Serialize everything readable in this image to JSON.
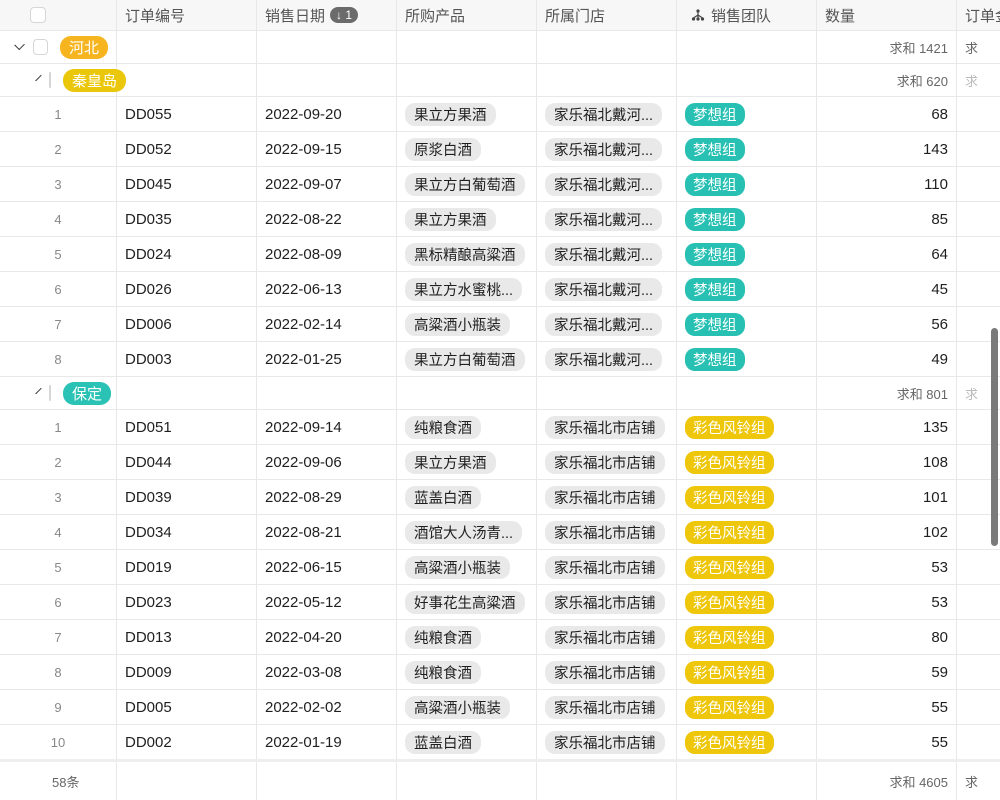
{
  "header": {
    "columns": [
      "订单编号",
      "销售日期",
      "所购产品",
      "所属门店",
      "销售团队",
      "数量",
      "订单金"
    ],
    "sort_badge": "↓ 1",
    "team_icon": "hierarchy-icon"
  },
  "colors": {
    "hebei": "#f6b51e",
    "qinhuangdao": "#ebc70c",
    "baoding": "#29c2b4",
    "team_dream": "#27c0b3",
    "team_wind": "#eec60a"
  },
  "groups": [
    {
      "label": "河北",
      "sum": "求和 1421",
      "sum2": "求",
      "color": "#f6b51e",
      "level": 0
    },
    {
      "label": "秦皇岛",
      "sum": "求和 620",
      "sum2": "求",
      "color": "#ebc70c",
      "level": 1,
      "rows": [
        {
          "i": "1",
          "id": "DD055",
          "date": "2022-09-20",
          "product": "果立方果酒",
          "store": "家乐福北戴河...",
          "team": "梦想组",
          "qty": "68"
        },
        {
          "i": "2",
          "id": "DD052",
          "date": "2022-09-15",
          "product": "原浆白酒",
          "store": "家乐福北戴河...",
          "team": "梦想组",
          "qty": "143"
        },
        {
          "i": "3",
          "id": "DD045",
          "date": "2022-09-07",
          "product": "果立方白葡萄酒",
          "store": "家乐福北戴河...",
          "team": "梦想组",
          "qty": "110"
        },
        {
          "i": "4",
          "id": "DD035",
          "date": "2022-08-22",
          "product": "果立方果酒",
          "store": "家乐福北戴河...",
          "team": "梦想组",
          "qty": "85"
        },
        {
          "i": "5",
          "id": "DD024",
          "date": "2022-08-09",
          "product": "黑标精酿高粱酒",
          "store": "家乐福北戴河...",
          "team": "梦想组",
          "qty": "64"
        },
        {
          "i": "6",
          "id": "DD026",
          "date": "2022-06-13",
          "product": "果立方水蜜桃...",
          "store": "家乐福北戴河...",
          "team": "梦想组",
          "qty": "45"
        },
        {
          "i": "7",
          "id": "DD006",
          "date": "2022-02-14",
          "product": "高粱酒小瓶装",
          "store": "家乐福北戴河...",
          "team": "梦想组",
          "qty": "56"
        },
        {
          "i": "8",
          "id": "DD003",
          "date": "2022-01-25",
          "product": "果立方白葡萄酒",
          "store": "家乐福北戴河...",
          "team": "梦想组",
          "qty": "49"
        }
      ]
    },
    {
      "label": "保定",
      "sum": "求和 801",
      "sum2": "求",
      "color": "#29c2b4",
      "level": 1,
      "rows": [
        {
          "i": "1",
          "id": "DD051",
          "date": "2022-09-14",
          "product": "纯粮食酒",
          "store": "家乐福北市店铺",
          "team": "彩色风铃组",
          "qty": "135"
        },
        {
          "i": "2",
          "id": "DD044",
          "date": "2022-09-06",
          "product": "果立方果酒",
          "store": "家乐福北市店铺",
          "team": "彩色风铃组",
          "qty": "108"
        },
        {
          "i": "3",
          "id": "DD039",
          "date": "2022-08-29",
          "product": "蓝盖白酒",
          "store": "家乐福北市店铺",
          "team": "彩色风铃组",
          "qty": "101"
        },
        {
          "i": "4",
          "id": "DD034",
          "date": "2022-08-21",
          "product": "酒馆大人汤青...",
          "store": "家乐福北市店铺",
          "team": "彩色风铃组",
          "qty": "102"
        },
        {
          "i": "5",
          "id": "DD019",
          "date": "2022-06-15",
          "product": "高粱酒小瓶装",
          "store": "家乐福北市店铺",
          "team": "彩色风铃组",
          "qty": "53"
        },
        {
          "i": "6",
          "id": "DD023",
          "date": "2022-05-12",
          "product": "好事花生高粱酒",
          "store": "家乐福北市店铺",
          "team": "彩色风铃组",
          "qty": "53"
        },
        {
          "i": "7",
          "id": "DD013",
          "date": "2022-04-20",
          "product": "纯粮食酒",
          "store": "家乐福北市店铺",
          "team": "彩色风铃组",
          "qty": "80"
        },
        {
          "i": "8",
          "id": "DD009",
          "date": "2022-03-08",
          "product": "纯粮食酒",
          "store": "家乐福北市店铺",
          "team": "彩色风铃组",
          "qty": "59"
        },
        {
          "i": "9",
          "id": "DD005",
          "date": "2022-02-02",
          "product": "高粱酒小瓶装",
          "store": "家乐福北市店铺",
          "team": "彩色风铃组",
          "qty": "55"
        },
        {
          "i": "10",
          "id": "DD002",
          "date": "2022-01-19",
          "product": "蓝盖白酒",
          "store": "家乐福北市店铺",
          "team": "彩色风铃组",
          "qty": "55"
        }
      ]
    }
  ],
  "team_colors": {
    "梦想组": "#27c0b3",
    "彩色风铃组": "#eec60a"
  },
  "footer": {
    "count": "58条",
    "sum": "求和 4605",
    "sum2": "求"
  }
}
